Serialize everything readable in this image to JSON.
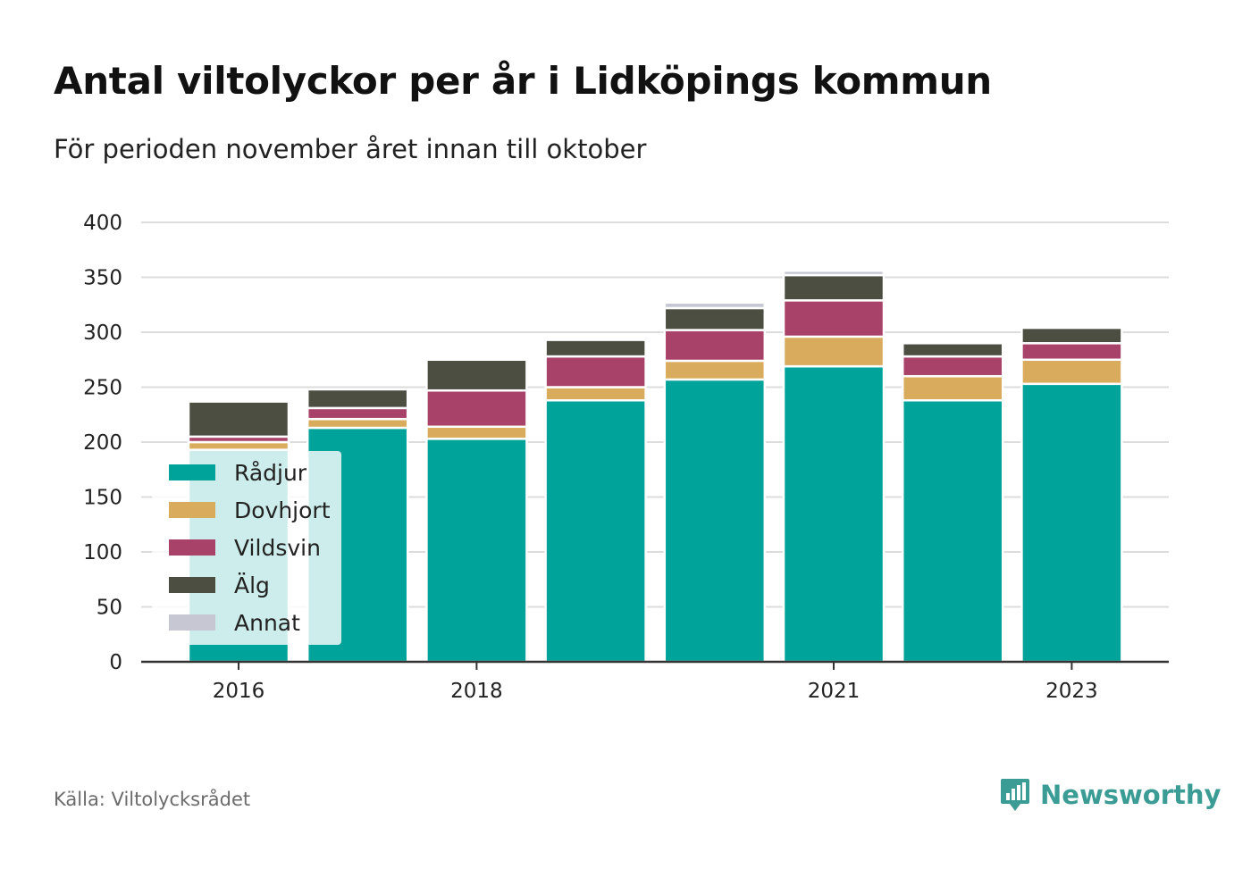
{
  "title": "Antal viltolyckor per år i Lidköpings kommun",
  "subtitle": "För perioden november året innan till oktober",
  "source": "Källa: Viltolycksrådet",
  "brand": "Newsworthy",
  "colors": {
    "Rådjur": "#00a39a",
    "Dovhjort": "#d9ab5c",
    "Vildsvin": "#a84268",
    "Älg": "#4d4e42",
    "Annat": "#c7c7d3",
    "brand": "#3a9c94"
  },
  "chart_data": {
    "type": "bar",
    "stacked": true,
    "x": [
      2016,
      2017,
      2018,
      2019,
      2020,
      2021,
      2022,
      2023
    ],
    "x_tick_labels": [
      "2016",
      "2018",
      "2021",
      "2023"
    ],
    "ylim": [
      0,
      400
    ],
    "y_ticks": [
      0,
      50,
      100,
      150,
      200,
      250,
      300,
      350,
      400
    ],
    "grid": true,
    "legend_position": "bottom-left",
    "series": [
      {
        "name": "Rådjur",
        "values": [
          193,
          213,
          203,
          238,
          257,
          269,
          238,
          253
        ]
      },
      {
        "name": "Dovhjort",
        "values": [
          7,
          8,
          11,
          12,
          17,
          27,
          22,
          22
        ]
      },
      {
        "name": "Vildsvin",
        "values": [
          5,
          10,
          33,
          28,
          28,
          33,
          18,
          15
        ]
      },
      {
        "name": "Älg",
        "values": [
          32,
          17,
          28,
          15,
          20,
          23,
          12,
          14
        ]
      },
      {
        "name": "Annat",
        "values": [
          2,
          0,
          0,
          0,
          5,
          4,
          0,
          0
        ]
      }
    ]
  }
}
